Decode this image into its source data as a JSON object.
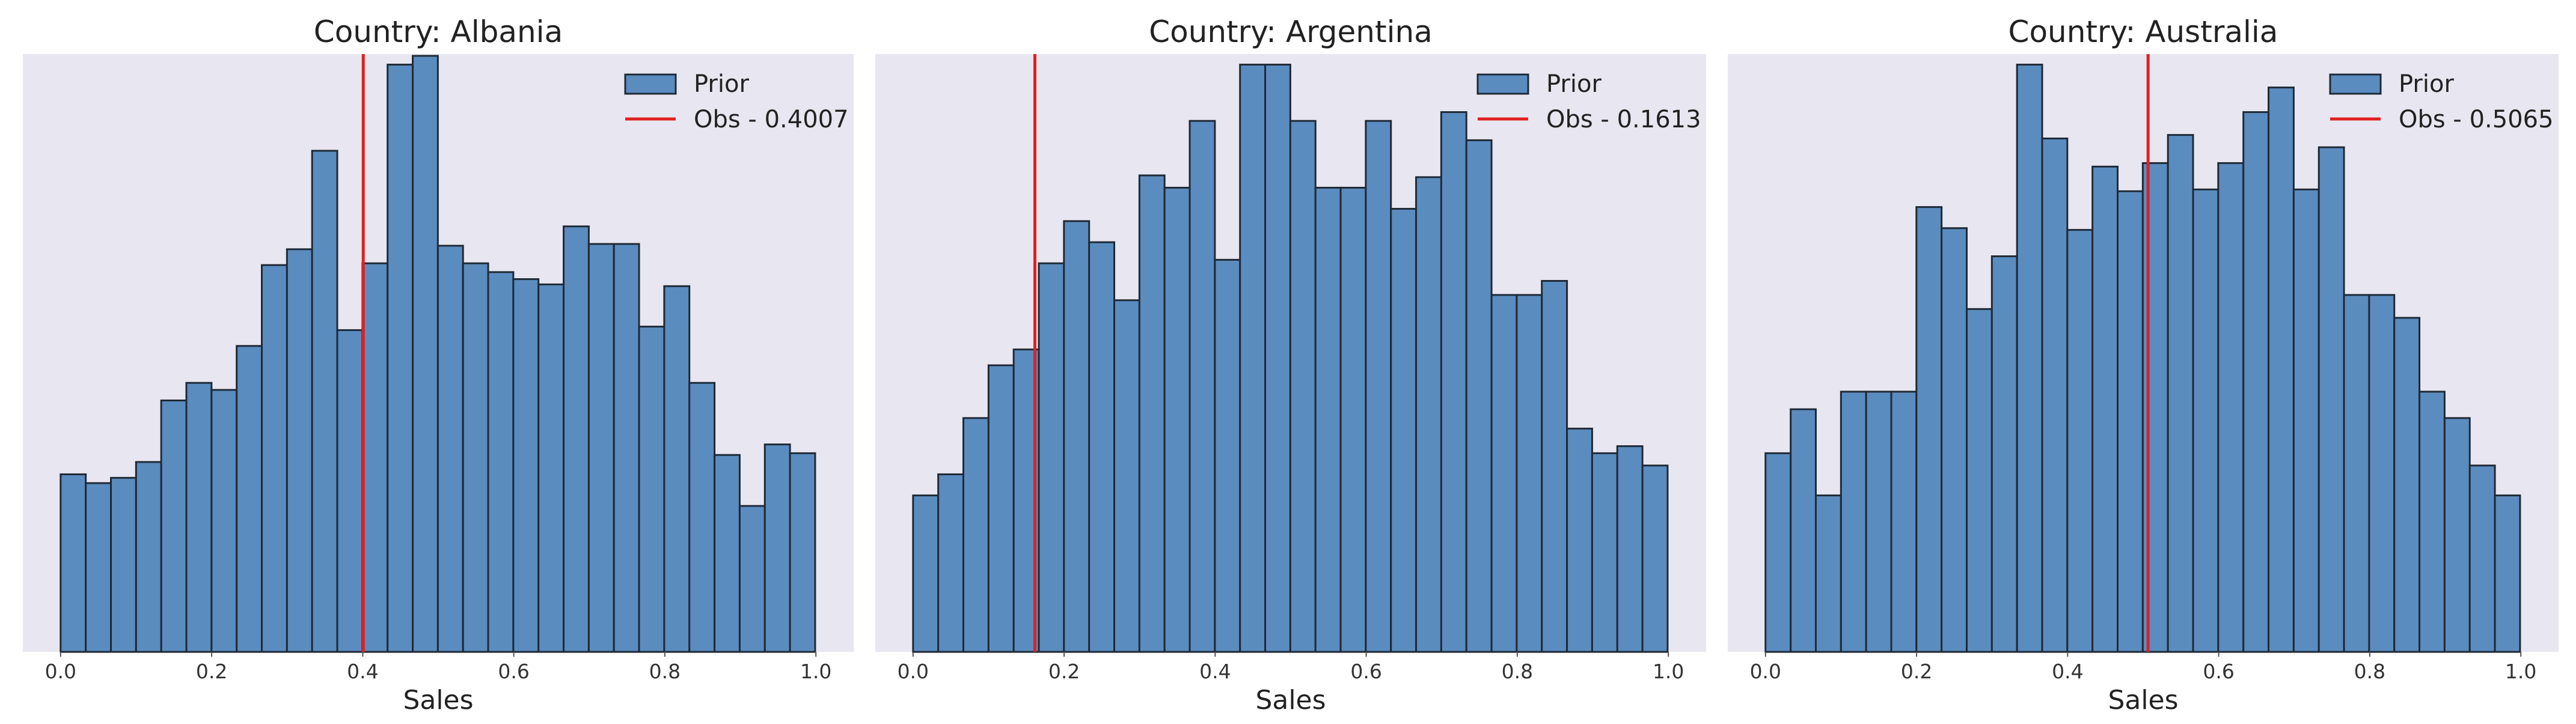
{
  "chart_data": [
    {
      "type": "bar",
      "title": "Country: Albania",
      "xlabel": "Sales",
      "ylabel": "",
      "xlim": [
        -0.05,
        1.05
      ],
      "ylim": [
        0,
        340
      ],
      "xticks": [
        "0.0",
        "0.2",
        "0.4",
        "0.6",
        "0.8",
        "1.0"
      ],
      "bin_start": 0.0,
      "bin_width": 0.0333,
      "values": [
        101,
        96,
        99,
        108,
        143,
        153,
        149,
        174,
        220,
        229,
        285,
        183,
        221,
        334,
        339,
        231,
        221,
        216,
        212,
        209,
        242,
        232,
        232,
        185,
        208,
        153,
        112,
        83,
        118,
        113
      ],
      "legend": {
        "position": "upper-right",
        "prior_label": "Prior",
        "obs_label": "Obs - 0.4007"
      },
      "observed": 0.4007
    },
    {
      "type": "bar",
      "title": "Country: Argentina",
      "xlabel": "Sales",
      "ylabel": "",
      "xlim": [
        -0.05,
        1.05
      ],
      "ylim": [
        0,
        340
      ],
      "xticks": [
        "0.0",
        "0.2",
        "0.4",
        "0.6",
        "0.8",
        "1.0"
      ],
      "bin_start": 0.0,
      "bin_width": 0.0333,
      "values": [
        89,
        101,
        133,
        163,
        172,
        221,
        245,
        233,
        200,
        271,
        264,
        302,
        223,
        334,
        334,
        302,
        264,
        264,
        302,
        252,
        270,
        307,
        291,
        203,
        203,
        211,
        127,
        113,
        117,
        106
      ],
      "legend": {
        "position": "upper-right",
        "prior_label": "Prior",
        "obs_label": "Obs - 0.1613"
      },
      "observed": 0.1613
    },
    {
      "type": "bar",
      "title": "Country: Australia",
      "xlabel": "Sales",
      "ylabel": "",
      "xlim": [
        -0.05,
        1.05
      ],
      "ylim": [
        0,
        340
      ],
      "xticks": [
        "0.0",
        "0.2",
        "0.4",
        "0.6",
        "0.8",
        "1.0"
      ],
      "bin_start": 0.0,
      "bin_width": 0.0333,
      "values": [
        113,
        138,
        89,
        148,
        148,
        148,
        253,
        241,
        195,
        225,
        334,
        292,
        240,
        276,
        262,
        278,
        294,
        263,
        278,
        307,
        321,
        263,
        287,
        203,
        203,
        190,
        148,
        133,
        106,
        89
      ],
      "legend": {
        "position": "upper-right",
        "prior_label": "Prior",
        "obs_label": "Obs - 0.5065"
      },
      "observed": 0.5065
    }
  ]
}
